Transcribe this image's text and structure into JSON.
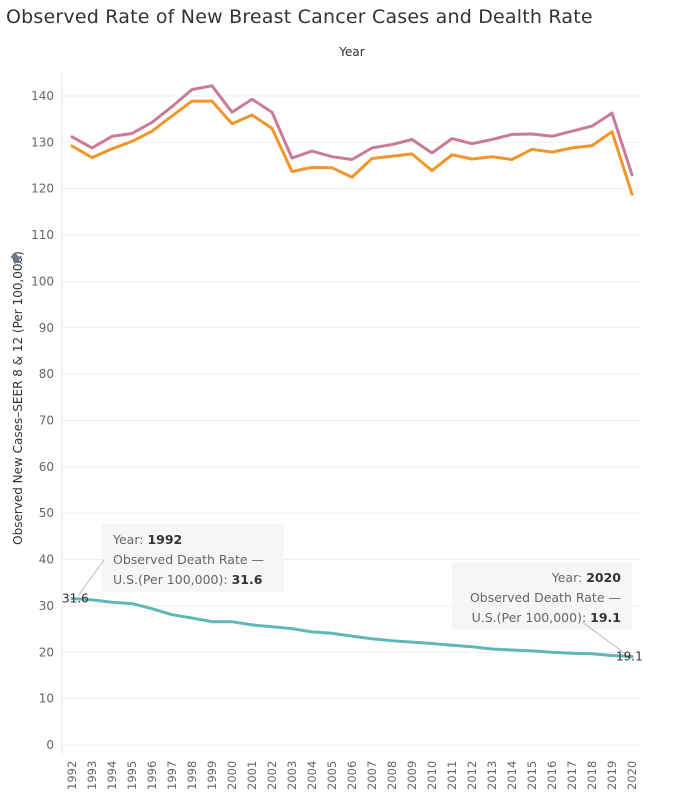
{
  "title": "Observed Rate of New Breast Cancer Cases and Dealth Rate",
  "chart_data": {
    "type": "line",
    "title": "Observed Rate of New Breast Cancer Cases and Dealth Rate",
    "x_axis_title": "Year",
    "ylabel": "Observed New Cases–SEER 8 & 12 (Per 100,000)",
    "ylim": [
      0,
      148
    ],
    "yticks": [
      0,
      10,
      20,
      30,
      40,
      50,
      60,
      70,
      80,
      90,
      100,
      110,
      120,
      130,
      140
    ],
    "x": [
      1992,
      1993,
      1994,
      1995,
      1996,
      1997,
      1998,
      1999,
      2000,
      2001,
      2002,
      2003,
      2004,
      2005,
      2006,
      2007,
      2008,
      2009,
      2010,
      2011,
      2012,
      2013,
      2014,
      2015,
      2016,
      2017,
      2018,
      2019,
      2020
    ],
    "grid": true,
    "series": [
      {
        "color": "#c97b9b",
        "values": [
          131.2,
          128.8,
          131.3,
          131.9,
          134.3,
          137.7,
          141.4,
          142.2,
          136.5,
          139.3,
          136.5,
          126.6,
          128.1,
          126.9,
          126.3,
          128.8,
          129.5,
          130.6,
          127.7,
          130.8,
          129.7,
          130.6,
          131.7,
          131.8,
          131.3,
          132.4,
          133.5,
          136.3,
          123.0
        ]
      },
      {
        "color": "#f0962a",
        "values": [
          129.2,
          126.7,
          128.6,
          130.2,
          132.4,
          135.7,
          138.9,
          138.9,
          134.0,
          135.9,
          133.0,
          123.7,
          124.6,
          124.5,
          122.5,
          126.5,
          127.0,
          127.5,
          123.9,
          127.3,
          126.4,
          126.9,
          126.3,
          128.5,
          127.9,
          128.8,
          129.3,
          132.3,
          118.8
        ]
      },
      {
        "color": "#5fb8b8",
        "values": [
          31.6,
          31.3,
          30.8,
          30.5,
          29.4,
          28.1,
          27.4,
          26.6,
          26.6,
          25.9,
          25.5,
          25.1,
          24.4,
          24.1,
          23.5,
          22.9,
          22.5,
          22.2,
          21.9,
          21.5,
          21.2,
          20.7,
          20.5,
          20.3,
          20.0,
          19.8,
          19.7,
          19.3,
          19.1
        ]
      }
    ],
    "annotations": [
      {
        "year_label": "Year:",
        "year": "1992",
        "line1": "Observed Death Rate —",
        "line2": "U.S.(Per 100,000):",
        "value": "31.6",
        "point_label": "31.6",
        "x": 1992,
        "y": 31.6
      },
      {
        "year_label": "Year:",
        "year": "2020",
        "line1": "Observed Death Rate —",
        "line2": "U.S.(Per 100,000):",
        "value": "19.1",
        "point_label": "19.1",
        "x": 2020,
        "y": 19.1
      }
    ]
  }
}
